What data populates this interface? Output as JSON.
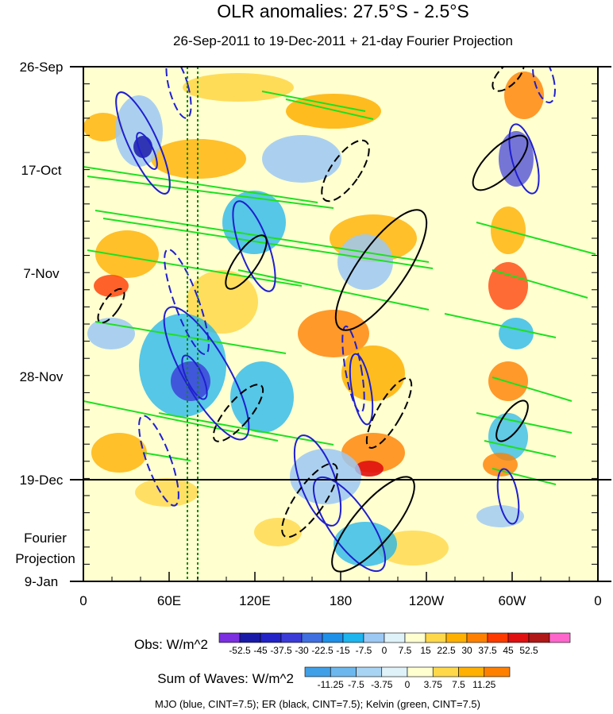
{
  "chart_data": {
    "type": "heatmap",
    "title": "OLR anomalies: 27.5°S - 2.5°S",
    "subtitle": "26-Sep-2011 to 19-Dec-2011 + 21-day Fourier Projection",
    "y_ticks": [
      "26-Sep",
      "17-Oct",
      "7-Nov",
      "28-Nov",
      "19-Dec",
      "9-Jan"
    ],
    "y_range": [
      "26-Sep-2011",
      "9-Jan-2012"
    ],
    "observation_end": "19-Dec",
    "projection_label": [
      "Fourier",
      "Projection"
    ],
    "x_ticks": [
      "0",
      "60E",
      "120E",
      "180",
      "120W",
      "60W",
      "0"
    ],
    "x_range_deg": [
      0,
      360
    ],
    "reference_lines_lon": [
      73,
      80
    ],
    "colorbars": [
      {
        "label": "Obs: W/m^2",
        "levels": [
          "-52.5",
          "-45",
          "-37.5",
          "-30",
          "-22.5",
          "-15",
          "-7.5",
          "0",
          "7.5",
          "15",
          "22.5",
          "30",
          "37.5",
          "45",
          "52.5"
        ],
        "colors": [
          "#7b2fe0",
          "#1a1aa8",
          "#2323c8",
          "#3b3bd8",
          "#3f6fe0",
          "#1e90e8",
          "#1eb4ee",
          "#9cc8f4",
          "#dff2fa",
          "#ffffd0",
          "#ffd84a",
          "#ffb000",
          "#ff8000",
          "#ff3a00",
          "#e01010",
          "#b01818",
          "#ff66cc"
        ]
      },
      {
        "label": "Sum of Waves: W/m^2",
        "levels": [
          "-11.25",
          "-7.5",
          "-3.75",
          "0",
          "3.75",
          "7.5",
          "11.25"
        ],
        "colors": [
          "#3fa0e8",
          "#6cb8ee",
          "#a8d4f4",
          "#dff2fa",
          "#ffffd0",
          "#ffd84a",
          "#ffb000",
          "#ff8000"
        ]
      }
    ],
    "legend": "MJO (blue, CINT=7.5); ER (black, CINT=7.5); Kelvin (green, CINT=7.5)",
    "series": [
      {
        "name": "MJO",
        "color": "#1f1fd0"
      },
      {
        "name": "ER",
        "color": "#000000"
      },
      {
        "name": "Kelvin",
        "color": "#1fe01f"
      }
    ],
    "background_color": "#ffffd0"
  }
}
